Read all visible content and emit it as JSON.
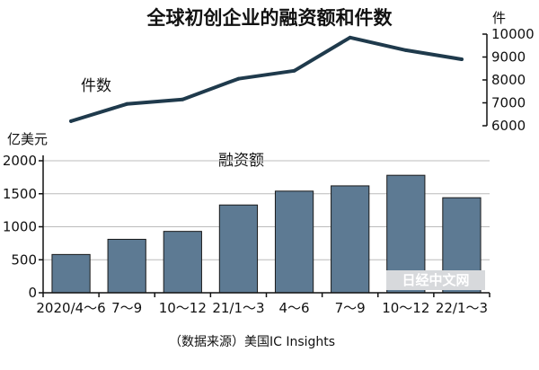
{
  "chart_data": [
    {
      "type": "line",
      "title": "全球初创企业的融资额和件数",
      "series": [
        {
          "name": "件数",
          "values": [
            6200,
            6950,
            7150,
            8050,
            8400,
            9850,
            9300,
            8900
          ]
        }
      ],
      "categories": [
        "2020/4～6",
        "7～9",
        "10～12",
        "21/1～3",
        "4～6",
        "7～9",
        "10～12",
        "22/1～3"
      ],
      "ylabel": "件",
      "ylim": [
        6000,
        10000
      ],
      "yticks": [
        "6000",
        "7000",
        "8000",
        "9000",
        "10000"
      ],
      "axis_side": "right",
      "color": "#1f3a4c"
    },
    {
      "type": "bar",
      "series": [
        {
          "name": "融资额",
          "values": [
            580,
            810,
            930,
            1330,
            1540,
            1620,
            1780,
            1440
          ]
        }
      ],
      "categories": [
        "2020/4～6",
        "7～9",
        "10～12",
        "21/1～3",
        "4～6",
        "7～9",
        "10～12",
        "22/1～3"
      ],
      "ylabel": "亿美元",
      "ylim": [
        0,
        2000
      ],
      "yticks": [
        "0",
        "500",
        "1000",
        "1500",
        "2000"
      ],
      "color": "#5d7a93"
    }
  ],
  "source": "（数据来源）美国IC Insights",
  "watermark": "日经中文网"
}
